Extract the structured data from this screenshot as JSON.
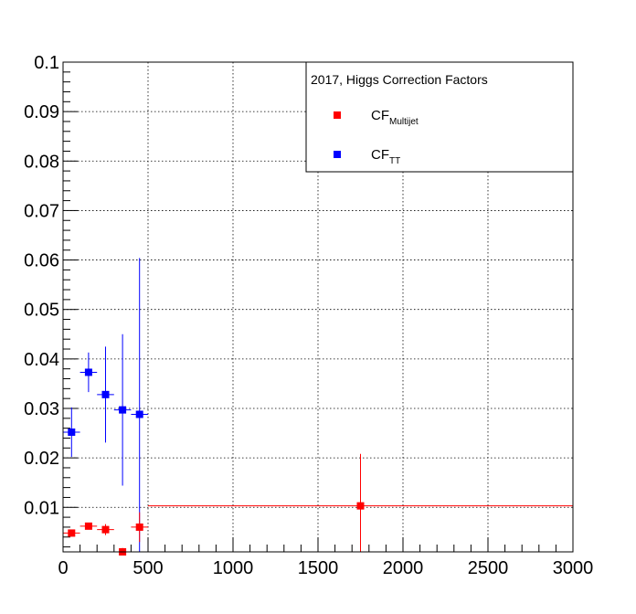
{
  "chart_data": {
    "type": "scatter",
    "title": "",
    "xlabel": "",
    "ylabel": "",
    "xlim": [
      0,
      3000
    ],
    "ylim": [
      0.001,
      0.1
    ],
    "grid": true,
    "legend_placement": "top-right",
    "legend": {
      "title": "2017, Higgs Correction Factors",
      "entries": [
        {
          "base": "CF",
          "sub": "Multijet",
          "color": "#ff0000"
        },
        {
          "base": "CF",
          "sub": "TT",
          "color": "#0000ff"
        }
      ]
    },
    "x_ticks": [
      "0",
      "500",
      "1000",
      "1500",
      "2000",
      "2500",
      "3000"
    ],
    "y_ticks": [
      "0.01",
      "0.02",
      "0.03",
      "0.04",
      "0.05",
      "0.06",
      "0.07",
      "0.08",
      "0.09",
      "0.1"
    ],
    "series": [
      {
        "name": "CF_Multijet",
        "color": "#ff0000",
        "points": [
          {
            "x": 50,
            "y": 0.0048,
            "xerr": 50,
            "yerr": 0.0007
          },
          {
            "x": 150,
            "y": 0.0062,
            "xerr": 50,
            "yerr": 0.0006
          },
          {
            "x": 250,
            "y": 0.0055,
            "xerr": 50,
            "yerr": 0.0011
          },
          {
            "x": 350,
            "y": 0.001,
            "xerr": 50,
            "yerr": 0.0008
          },
          {
            "x": 450,
            "y": 0.006,
            "xerr": 50,
            "yerr": 0.003
          },
          {
            "x": 1750,
            "y": 0.0103,
            "xerr": 1250,
            "yerr": 0.0105
          }
        ]
      },
      {
        "name": "CF_TT",
        "color": "#0000ff",
        "points": [
          {
            "x": 50,
            "y": 0.0252,
            "xerr": 50,
            "yerr": 0.005
          },
          {
            "x": 150,
            "y": 0.0373,
            "xerr": 50,
            "yerr": 0.004
          },
          {
            "x": 250,
            "y": 0.0328,
            "xerr": 50,
            "yerr": 0.0097
          },
          {
            "x": 350,
            "y": 0.0297,
            "xerr": 50,
            "yerr": 0.0153
          },
          {
            "x": 450,
            "y": 0.0288,
            "xerr": 50,
            "yerr": 0.0316
          }
        ]
      }
    ]
  }
}
